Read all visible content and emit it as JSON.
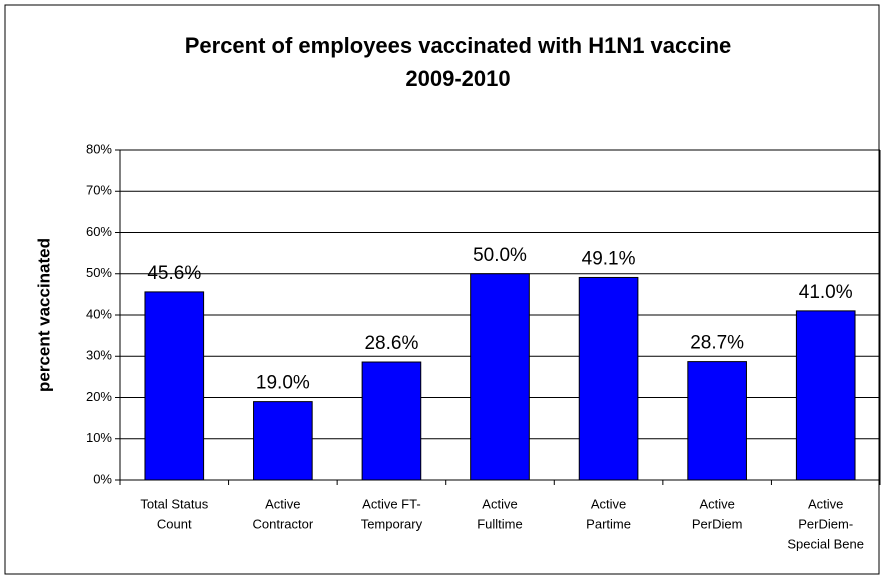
{
  "chart_data": {
    "type": "bar",
    "title": [
      "Percent of employees vaccinated with H1N1 vaccine",
      "2009-2010"
    ],
    "y_label": "percent vaccinated",
    "categories": [
      [
        "Total Status",
        "Count"
      ],
      [
        "Active",
        "Contractor"
      ],
      [
        "Active FT-",
        "Temporary"
      ],
      [
        "Active",
        "Fulltime"
      ],
      [
        "Active",
        "Partime"
      ],
      [
        "Active",
        "PerDiem"
      ],
      [
        "Active",
        "PerDiem-",
        "Special Bene"
      ]
    ],
    "values": [
      45.6,
      19.0,
      28.6,
      50.0,
      49.1,
      28.7,
      41.0
    ],
    "value_labels": [
      "45.6%",
      "19.0%",
      "28.6%",
      "50.0%",
      "49.1%",
      "28.7%",
      "41.0%"
    ],
    "color": "#0000ff",
    "ylim": [
      0,
      80
    ],
    "yticks": [
      {
        "value": 0,
        "label": "0%"
      },
      {
        "value": 10,
        "label": "10%"
      },
      {
        "value": 20,
        "label": "20%"
      },
      {
        "value": 30,
        "label": "30%"
      },
      {
        "value": 40,
        "label": "40%"
      },
      {
        "value": 50,
        "label": "50%"
      },
      {
        "value": 60,
        "label": "60%"
      },
      {
        "value": 70,
        "label": "70%"
      },
      {
        "value": 80,
        "label": "80%"
      }
    ],
    "grid": true
  }
}
